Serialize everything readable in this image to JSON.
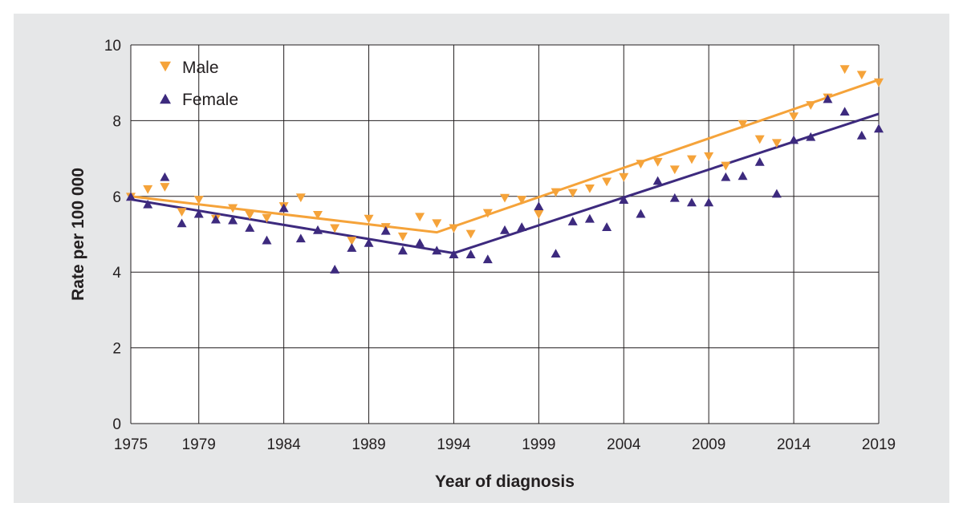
{
  "chart_data": {
    "type": "scatter",
    "xlabel": "Year of diagnosis",
    "ylabel": "Rate per 100 000",
    "xlim": [
      1975,
      2019
    ],
    "ylim": [
      0,
      10
    ],
    "xticks": [
      1975,
      1979,
      1984,
      1989,
      1994,
      1999,
      2004,
      2009,
      2014,
      2019
    ],
    "yticks": [
      0,
      2,
      4,
      6,
      8,
      10
    ],
    "grid": true,
    "legend_position": "top-left",
    "plot_background": "#ffffff",
    "frame_background": "#e6e7e8",
    "series": [
      {
        "name": "Male",
        "color": "#f5a33a",
        "marker": "triangle-down",
        "x": [
          1975,
          1976,
          1977,
          1978,
          1979,
          1980,
          1981,
          1982,
          1983,
          1984,
          1985,
          1986,
          1987,
          1988,
          1989,
          1990,
          1991,
          1992,
          1993,
          1994,
          1995,
          1996,
          1997,
          1998,
          1999,
          2000,
          2001,
          2002,
          2003,
          2004,
          2005,
          2006,
          2007,
          2008,
          2009,
          2010,
          2011,
          2012,
          2013,
          2014,
          2015,
          2016,
          2017,
          2018,
          2019
        ],
        "y": [
          5.98,
          6.18,
          6.24,
          5.58,
          5.9,
          5.4,
          5.68,
          5.5,
          5.42,
          5.73,
          5.96,
          5.5,
          5.15,
          4.82,
          5.4,
          5.18,
          4.93,
          5.45,
          5.28,
          5.15,
          5.0,
          5.55,
          5.95,
          5.9,
          5.52,
          6.1,
          6.08,
          6.2,
          6.38,
          6.5,
          6.85,
          6.9,
          6.7,
          6.97,
          7.05,
          6.8,
          7.9,
          7.5,
          7.4,
          8.1,
          8.4,
          8.6,
          9.35,
          9.2,
          9.0
        ],
        "trend": {
          "x": [
            1975,
            1993,
            2019
          ],
          "y": [
            6.0,
            5.05,
            9.08
          ]
        }
      },
      {
        "name": "Female",
        "color": "#3d2a7e",
        "marker": "triangle-up",
        "x": [
          1975,
          1976,
          1977,
          1978,
          1979,
          1980,
          1981,
          1982,
          1983,
          1984,
          1985,
          1986,
          1987,
          1988,
          1989,
          1990,
          1991,
          1992,
          1993,
          1994,
          1995,
          1996,
          1997,
          1998,
          1999,
          2000,
          2001,
          2002,
          2003,
          2004,
          2005,
          2006,
          2007,
          2008,
          2009,
          2010,
          2011,
          2012,
          2013,
          2014,
          2015,
          2016,
          2017,
          2018,
          2019
        ],
        "y": [
          6.0,
          5.8,
          6.52,
          5.3,
          5.55,
          5.4,
          5.38,
          5.18,
          4.85,
          5.7,
          4.9,
          5.12,
          4.08,
          4.65,
          4.78,
          5.1,
          4.58,
          4.78,
          4.58,
          4.48,
          4.48,
          4.35,
          5.12,
          5.2,
          5.75,
          4.5,
          5.35,
          5.42,
          5.2,
          5.92,
          5.55,
          6.42,
          5.97,
          5.85,
          5.85,
          6.52,
          6.55,
          6.92,
          6.08,
          7.5,
          7.58,
          8.58,
          8.25,
          7.62,
          7.8
        ],
        "trend": {
          "x": [
            1975,
            1994,
            2019
          ],
          "y": [
            5.92,
            4.5,
            8.18
          ]
        }
      }
    ]
  }
}
